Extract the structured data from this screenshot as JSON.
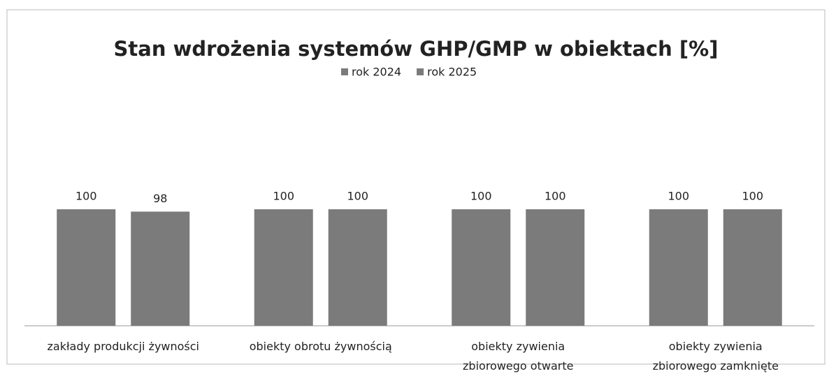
{
  "chart_data": {
    "type": "bar",
    "title": "Stan wdrożenia systemów GHP/GMP w obiektach [%]",
    "categories": [
      "zakłady produkcji żywności",
      "obiekty obrotu żywnością",
      "obiekty zywienia\nzbiorowego otwarte",
      "obiekty zywienia\nzbiorowego zamknięte"
    ],
    "series": [
      {
        "name": "rok 2024",
        "color": "#7b7b7b",
        "values": [
          100,
          100,
          100,
          100
        ]
      },
      {
        "name": "rok 2025",
        "color": "#7b7b7b",
        "values": [
          98,
          100,
          100,
          100
        ]
      }
    ],
    "legend": "top"
  }
}
